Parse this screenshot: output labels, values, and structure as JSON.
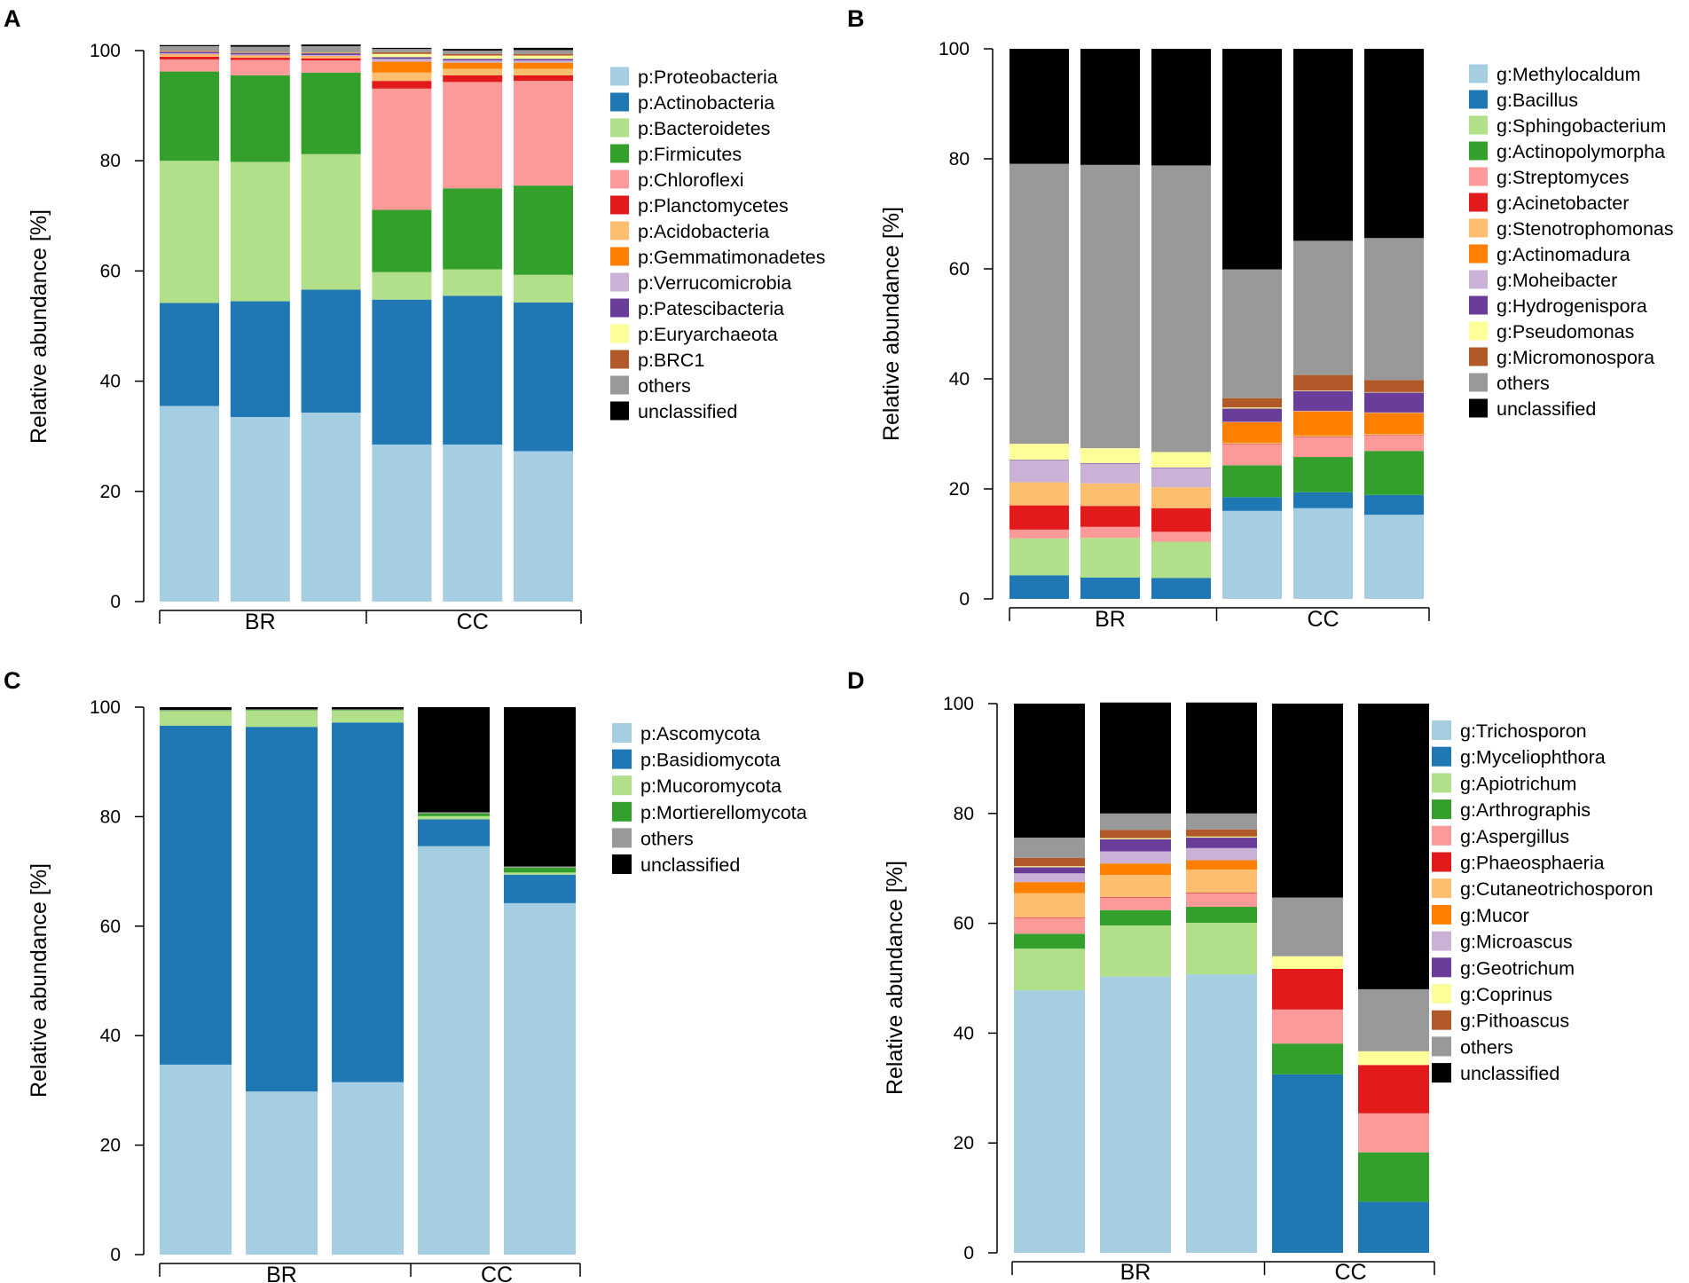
{
  "figure": {
    "colors": {
      "lightblue": "#a6cee3",
      "blue": "#1f78b4",
      "lightgreen": "#b2df8a",
      "green": "#33a02c",
      "pink": "#fb9a99",
      "red": "#e31a1c",
      "lightorange": "#fdbf6f",
      "orange": "#ff7f00",
      "lavender": "#cab2d6",
      "purple": "#6a3d9a",
      "lightyellow": "#ffff99",
      "brown": "#b15928",
      "grey": "#999999",
      "black": "#000000"
    }
  },
  "chart_data": [
    {
      "panel": "A",
      "type": "bar",
      "stacked": true,
      "ylabel": "Relative abundance [%]",
      "ylim": [
        0,
        100
      ],
      "yticks": [
        "0",
        "20",
        "40",
        "60",
        "80",
        "100"
      ],
      "groups": [
        {
          "label": "BR",
          "bars": [
            0,
            1,
            2
          ]
        },
        {
          "label": "CC",
          "bars": [
            3,
            4,
            5
          ]
        }
      ],
      "legend_position": "right",
      "series": [
        {
          "name": "p:Proteobacteria",
          "color": "#a6cee3",
          "values": [
            35.5,
            33.5,
            34.3,
            28.5,
            28.5,
            27.3
          ]
        },
        {
          "name": "p:Actinobacteria",
          "color": "#1f78b4",
          "values": [
            18.7,
            21.0,
            22.3,
            26.3,
            27.0,
            27.0
          ]
        },
        {
          "name": "p:Bacteroidetes",
          "color": "#b2df8a",
          "values": [
            25.8,
            25.3,
            24.6,
            5.0,
            4.8,
            5.0
          ]
        },
        {
          "name": "p:Firmicutes",
          "color": "#33a02c",
          "values": [
            16.2,
            15.7,
            14.8,
            11.3,
            14.7,
            16.2
          ]
        },
        {
          "name": "p:Chloroflexi",
          "color": "#fb9a99",
          "values": [
            2.2,
            2.8,
            2.2,
            22.0,
            19.3,
            19.0
          ]
        },
        {
          "name": "p:Planctomycetes",
          "color": "#e31a1c",
          "values": [
            0.5,
            0.4,
            0.4,
            1.4,
            1.2,
            1.0
          ]
        },
        {
          "name": "p:Acidobacteria",
          "color": "#fdbf6f",
          "values": [
            0.3,
            0.3,
            0.3,
            1.5,
            1.2,
            1.2
          ]
        },
        {
          "name": "p:Gemmatimonadetes",
          "color": "#ff7f00",
          "values": [
            0.1,
            0.1,
            0.1,
            2.0,
            1.1,
            1.1
          ]
        },
        {
          "name": "p:Verrucomicrobia",
          "color": "#cab2d6",
          "values": [
            0.2,
            0.2,
            0.2,
            0.5,
            0.4,
            0.4
          ]
        },
        {
          "name": "p:Patescibacteria",
          "color": "#6a3d9a",
          "values": [
            0.3,
            0.3,
            0.3,
            0.3,
            0.3,
            0.3
          ]
        },
        {
          "name": "p:Euryarchaeota",
          "color": "#ffff99",
          "values": [
            0.1,
            0.1,
            0.1,
            0.6,
            0.6,
            0.6
          ]
        },
        {
          "name": "p:BRC1",
          "color": "#b15928",
          "values": [
            0.1,
            0.1,
            0.1,
            0.3,
            0.3,
            0.3
          ]
        },
        {
          "name": "others",
          "color": "#999999",
          "values": [
            0.8,
            0.9,
            1.1,
            0.6,
            0.6,
            0.7
          ]
        },
        {
          "name": "unclassified",
          "color": "#000000",
          "values": [
            0.2,
            0.3,
            0.3,
            0.2,
            0.3,
            0.4
          ]
        }
      ]
    },
    {
      "panel": "B",
      "type": "bar",
      "stacked": true,
      "ylabel": "Relative abundance [%]",
      "ylim": [
        0,
        100
      ],
      "yticks": [
        "0",
        "20",
        "40",
        "60",
        "80",
        "100"
      ],
      "groups": [
        {
          "label": "BR",
          "bars": [
            0,
            1,
            2
          ]
        },
        {
          "label": "CC",
          "bars": [
            3,
            4,
            5
          ]
        }
      ],
      "legend_position": "right",
      "series": [
        {
          "name": "g:Methylocaldum",
          "color": "#a6cee3",
          "values": [
            0.0,
            0.0,
            0.0,
            16.0,
            16.5,
            15.3
          ]
        },
        {
          "name": "g:Bacillus",
          "color": "#1f78b4",
          "values": [
            4.3,
            3.9,
            3.8,
            2.5,
            2.9,
            3.6
          ]
        },
        {
          "name": "g:Sphingobacterium",
          "color": "#b2df8a",
          "values": [
            6.7,
            7.2,
            6.6,
            0.0,
            0.0,
            0.0
          ]
        },
        {
          "name": "g:Actinopolymorpha",
          "color": "#33a02c",
          "values": [
            0.0,
            0.0,
            0.0,
            5.8,
            6.4,
            8.0
          ]
        },
        {
          "name": "g:Streptomyces",
          "color": "#fb9a99",
          "values": [
            1.6,
            2.0,
            1.8,
            3.8,
            3.6,
            2.8
          ]
        },
        {
          "name": "g:Acinetobacter",
          "color": "#e31a1c",
          "values": [
            4.4,
            3.8,
            4.3,
            0.1,
            0.1,
            0.1
          ]
        },
        {
          "name": "g:Stenotrophomonas",
          "color": "#fdbf6f",
          "values": [
            4.2,
            4.1,
            3.8,
            0.2,
            0.2,
            0.2
          ]
        },
        {
          "name": "g:Actinomadura",
          "color": "#ff7f00",
          "values": [
            0.0,
            0.0,
            0.0,
            3.7,
            4.4,
            3.8
          ]
        },
        {
          "name": "g:Moheibacter",
          "color": "#cab2d6",
          "values": [
            4.0,
            3.6,
            3.5,
            0.1,
            0.1,
            0.1
          ]
        },
        {
          "name": "g:Hydrogenispora",
          "color": "#6a3d9a",
          "values": [
            0.1,
            0.1,
            0.1,
            2.4,
            3.6,
            3.6
          ]
        },
        {
          "name": "g:Pseudomonas",
          "color": "#ffff99",
          "values": [
            2.9,
            2.7,
            2.8,
            0.2,
            0.1,
            0.1
          ]
        },
        {
          "name": "g:Micromonospora",
          "color": "#b15928",
          "values": [
            0.0,
            0.0,
            0.0,
            1.7,
            2.8,
            2.2
          ]
        },
        {
          "name": "others",
          "color": "#999999",
          "values": [
            50.9,
            51.5,
            52.1,
            23.4,
            24.4,
            25.8
          ]
        },
        {
          "name": "unclassified",
          "color": "#000000",
          "values": [
            20.9,
            21.1,
            21.2,
            40.1,
            34.9,
            34.4
          ]
        }
      ]
    },
    {
      "panel": "C",
      "type": "bar",
      "stacked": true,
      "ylabel": "Relative abundance [%]",
      "ylim": [
        0,
        100
      ],
      "yticks": [
        "0",
        "20",
        "40",
        "60",
        "80",
        "100"
      ],
      "groups": [
        {
          "label": "BR",
          "bars": [
            0,
            1,
            2
          ]
        },
        {
          "label": "CC",
          "bars": [
            3,
            4
          ]
        }
      ],
      "legend_position": "right",
      "series": [
        {
          "name": "p:Ascomycota",
          "color": "#a6cee3",
          "values": [
            34.7,
            29.8,
            31.5,
            74.6,
            64.2
          ]
        },
        {
          "name": "p:Basidiomycota",
          "color": "#1f78b4",
          "values": [
            61.9,
            66.6,
            65.7,
            4.9,
            5.2
          ]
        },
        {
          "name": "p:Mucoromycota",
          "color": "#b2df8a",
          "values": [
            2.7,
            3.0,
            2.2,
            0.6,
            0.4
          ]
        },
        {
          "name": "p:Mortierellomycota",
          "color": "#33a02c",
          "values": [
            0.1,
            0.1,
            0.1,
            0.5,
            0.9
          ]
        },
        {
          "name": "others",
          "color": "#999999",
          "values": [
            0.1,
            0.1,
            0.1,
            0.2,
            0.2
          ]
        },
        {
          "name": "unclassified",
          "color": "#000000",
          "values": [
            0.5,
            0.4,
            0.4,
            19.2,
            29.1
          ]
        }
      ]
    },
    {
      "panel": "D",
      "type": "bar",
      "stacked": true,
      "ylabel": "Relative abundance [%]",
      "ylim": [
        0,
        100
      ],
      "yticks": [
        "0",
        "20",
        "40",
        "60",
        "80",
        "100"
      ],
      "groups": [
        {
          "label": "BR",
          "bars": [
            0,
            1,
            2
          ]
        },
        {
          "label": "CC",
          "bars": [
            3,
            4
          ]
        }
      ],
      "legend_position": "right",
      "series": [
        {
          "name": "g:Trichosporon",
          "color": "#a6cee3",
          "values": [
            47.8,
            50.3,
            50.7,
            0.0,
            0.0
          ]
        },
        {
          "name": "g:Myceliophthora",
          "color": "#1f78b4",
          "values": [
            0.0,
            0.0,
            0.0,
            32.5,
            9.3
          ]
        },
        {
          "name": "g:Apiotrichum",
          "color": "#b2df8a",
          "values": [
            7.6,
            9.3,
            9.4,
            0.0,
            0.0
          ]
        },
        {
          "name": "g:Arthrographis",
          "color": "#33a02c",
          "values": [
            2.7,
            2.8,
            2.9,
            5.6,
            9.0
          ]
        },
        {
          "name": "g:Aspergillus",
          "color": "#fb9a99",
          "values": [
            2.9,
            2.3,
            2.5,
            6.2,
            7.1
          ]
        },
        {
          "name": "g:Phaeosphaeria",
          "color": "#e31a1c",
          "values": [
            0.1,
            0.1,
            0.1,
            7.4,
            8.8
          ]
        },
        {
          "name": "g:Cutaneotrichosporon",
          "color": "#fdbf6f",
          "values": [
            4.4,
            4.0,
            4.2,
            0.0,
            0.0
          ]
        },
        {
          "name": "g:Mucor",
          "color": "#ff7f00",
          "values": [
            2.0,
            2.1,
            1.7,
            0.0,
            0.0
          ]
        },
        {
          "name": "g:Microascus",
          "color": "#cab2d6",
          "values": [
            1.6,
            2.2,
            2.2,
            0.0,
            0.0
          ]
        },
        {
          "name": "g:Geotrichum",
          "color": "#6a3d9a",
          "values": [
            1.1,
            2.2,
            1.9,
            0.0,
            0.0
          ]
        },
        {
          "name": "g:Coprinus",
          "color": "#ffff99",
          "values": [
            0.2,
            0.2,
            0.2,
            2.3,
            2.5
          ]
        },
        {
          "name": "g:Pithoascus",
          "color": "#b15928",
          "values": [
            1.5,
            1.5,
            1.3,
            0.0,
            0.0
          ]
        },
        {
          "name": "others",
          "color": "#999999",
          "values": [
            3.7,
            3.0,
            2.9,
            10.7,
            11.3
          ]
        },
        {
          "name": "unclassified",
          "color": "#000000",
          "values": [
            24.4,
            20.2,
            20.2,
            35.3,
            52.0
          ]
        }
      ]
    }
  ]
}
